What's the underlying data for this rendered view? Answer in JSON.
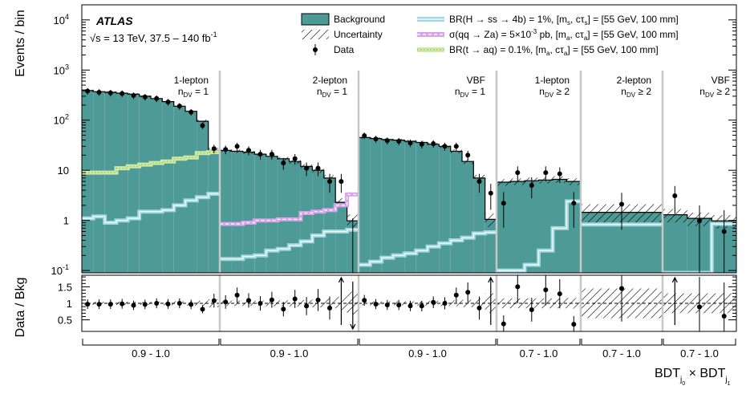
{
  "chart_data": {
    "type": "bar",
    "experiment": "ATLAS",
    "subtitle_sqrt": "√s",
    "subtitle_rest": " = 13 TeV, 37.5 – 140 fb",
    "subtitle_sup": "-1",
    "ylabel": "Events / bin",
    "ratio_ylabel": "Data / Bkg",
    "xlabel_main": "BDT",
    "xlabel_sub0": "j",
    "xlabel_subsub0": "0",
    "xlabel_times": " × ",
    "xlabel_sub1": "j",
    "xlabel_subsub1": "1",
    "ylim": [
      0.09,
      20000
    ],
    "yscale": "log",
    "ratio_ylim": [
      0.15,
      1.85
    ],
    "y_ticks": [
      {
        "base": "10",
        "exp": "4",
        "v": 10000
      },
      {
        "base": "10",
        "exp": "3",
        "v": 1000
      },
      {
        "base": "10",
        "exp": "2",
        "v": 100
      },
      {
        "base": "10",
        "exp": "",
        "v": 10
      },
      {
        "base": "1",
        "exp": "",
        "v": 1
      },
      {
        "base": "10",
        "exp": "-1",
        "v": 0.1
      }
    ],
    "ratio_ticks": [
      {
        "label": "1.5",
        "v": 1.5
      },
      {
        "label": "1",
        "v": 1.0
      },
      {
        "label": "0.5",
        "v": 0.5
      }
    ],
    "regions": [
      {
        "line1": "1-lepton",
        "nsym": "n",
        "nsub": "DV",
        "nrest": " = 1",
        "category": "0.9 - 1.0",
        "nbins": 12,
        "background": [
          390,
          370,
          360,
          345,
          330,
          300,
          270,
          235,
          190,
          150,
          95,
          25
        ],
        "bkg_unc": [
          0.05,
          0.05,
          0.05,
          0.05,
          0.05,
          0.05,
          0.05,
          0.06,
          0.06,
          0.07,
          0.08,
          0.12
        ],
        "data": [
          380,
          360,
          350,
          340,
          310,
          290,
          270,
          230,
          190,
          145,
          78,
          27
        ],
        "data_up": [
          0,
          0,
          0,
          0,
          0,
          0,
          0,
          0,
          0,
          0,
          0,
          0
        ],
        "sig_ss": [
          1.1,
          1.2,
          0.9,
          1.0,
          1.1,
          1.5,
          1.5,
          1.6,
          2.0,
          2.5,
          2.9,
          3.4
        ],
        "sig_za": null,
        "sig_taq": [
          9,
          9,
          9,
          11,
          12,
          13,
          14,
          15,
          17,
          18,
          22,
          23
        ]
      },
      {
        "line1": "2-lepton",
        "nsym": "n",
        "nsub": "DV",
        "nrest": " = 1",
        "category": "0.9 - 1.0",
        "nbins": 12,
        "background": [
          25,
          24,
          23,
          21,
          19,
          17,
          15,
          12,
          10,
          7,
          2.3,
          0.98
        ],
        "bkg_unc": [
          0.08,
          0.08,
          0.08,
          0.08,
          0.09,
          0.09,
          0.1,
          0.1,
          0.12,
          0.14,
          0.2,
          0.35
        ],
        "data": [
          26,
          30,
          25,
          21,
          21,
          14,
          17,
          11,
          11,
          6,
          6,
          0.1
        ],
        "data_up": [
          0,
          0,
          0,
          0,
          0,
          0,
          0,
          0,
          0,
          0,
          0,
          0
        ],
        "sig_ss": [
          0.17,
          0.17,
          0.19,
          0.2,
          0.25,
          0.27,
          0.32,
          0.38,
          0.5,
          0.6,
          0.6,
          0.65
        ],
        "sig_za": [
          0.85,
          0.85,
          0.9,
          1.0,
          1.0,
          1.05,
          1.05,
          1.4,
          1.5,
          1.6,
          2.0,
          3.3
        ],
        "sig_taq": null
      },
      {
        "line1": "VBF",
        "nsym": "n",
        "nsub": "DV",
        "nrest": " = 1",
        "category": "0.9 - 1.0",
        "nbins": 12,
        "background": [
          45,
          43,
          41,
          40,
          38,
          36,
          33,
          30,
          24,
          15,
          7,
          1.05
        ],
        "bkg_unc": [
          0.06,
          0.06,
          0.06,
          0.06,
          0.06,
          0.07,
          0.07,
          0.08,
          0.09,
          0.11,
          0.15,
          0.3
        ],
        "data": [
          49,
          42,
          39,
          38,
          35,
          33,
          34,
          30,
          30,
          20,
          6,
          3.5
        ],
        "data_up": [
          0,
          0,
          0,
          0,
          0,
          0,
          0,
          0,
          0,
          0,
          0,
          1
        ],
        "sig_ss": [
          0.13,
          0.15,
          0.18,
          0.2,
          0.22,
          0.25,
          0.3,
          0.35,
          0.4,
          0.45,
          0.55,
          0.58
        ],
        "sig_za": null,
        "sig_taq": null
      },
      {
        "line1": "1-lepton",
        "nsym": "n",
        "nsub": "DV",
        "nrest": " ≥ 2",
        "category": "0.7 - 1.0",
        "nbins": 6,
        "background": [
          5.8,
          6.0,
          6.2,
          6.4,
          6.6,
          6.0
        ],
        "bkg_unc": [
          0.15,
          0.15,
          0.15,
          0.15,
          0.15,
          0.16
        ],
        "data": [
          2.2,
          9,
          5,
          9,
          8.5,
          2.2
        ],
        "data_up": [
          0,
          0,
          0,
          0,
          0,
          0
        ],
        "sig_ss": [
          0.1,
          0.1,
          0.13,
          0.25,
          0.7,
          2.4
        ],
        "sig_za": null,
        "sig_taq": null
      },
      {
        "line1": "2-lepton",
        "nsym": "n",
        "nsub": "DV",
        "nrest": " ≥ 2",
        "category": "0.7 - 1.0",
        "nbins": 1,
        "background": [
          1.45
        ],
        "bkg_unc": [
          0.45
        ],
        "data": [
          2.1
        ],
        "data_up": [
          0
        ],
        "sig_ss": [
          0.83
        ],
        "sig_za": null,
        "sig_taq": null
      },
      {
        "line1": "VBF",
        "nsym": "n",
        "nsub": "DV",
        "nrest": " ≥ 2",
        "category": "0.7 - 1.0",
        "nbins": 3,
        "background": [
          1.3,
          1.1,
          0.98
        ],
        "bkg_unc": [
          0.3,
          0.3,
          0.3
        ],
        "data": [
          3.1,
          0.98,
          0.6
        ],
        "data_up": [
          1,
          0,
          0
        ],
        "sig_ss": [
          0.01,
          0.01,
          0.85
        ],
        "sig_za": null,
        "sig_taq": null
      }
    ],
    "legend": [
      {
        "key": "bkg",
        "label": "Background"
      },
      {
        "key": "unc",
        "label": "Uncertainty"
      },
      {
        "key": "data",
        "label": "Data"
      },
      {
        "key": "ss",
        "parts": [
          "BR(H → ss → 4b) = 1%, [m",
          "s",
          ", cτ",
          "s",
          "] = [55 GeV, 100 mm]"
        ]
      },
      {
        "key": "za",
        "parts": [
          "σ(qq → Za) = 5×10",
          "-3",
          " pb, [m",
          "a",
          ", cτ",
          "a",
          "] = [55 GeV, 100 mm]"
        ]
      },
      {
        "key": "taq",
        "parts": [
          "BR(t → aq) = 0.1%, [m",
          "a",
          ", cτ",
          "a",
          "] = [55 GeV, 100 mm]"
        ]
      }
    ],
    "colors": {
      "background": "#4e9a96",
      "background_edge": "#000000",
      "ss": "#9fd8e0",
      "za": "#d9a3ec",
      "taq": "#cfe9a6",
      "separator": "#c8c8c8"
    }
  }
}
